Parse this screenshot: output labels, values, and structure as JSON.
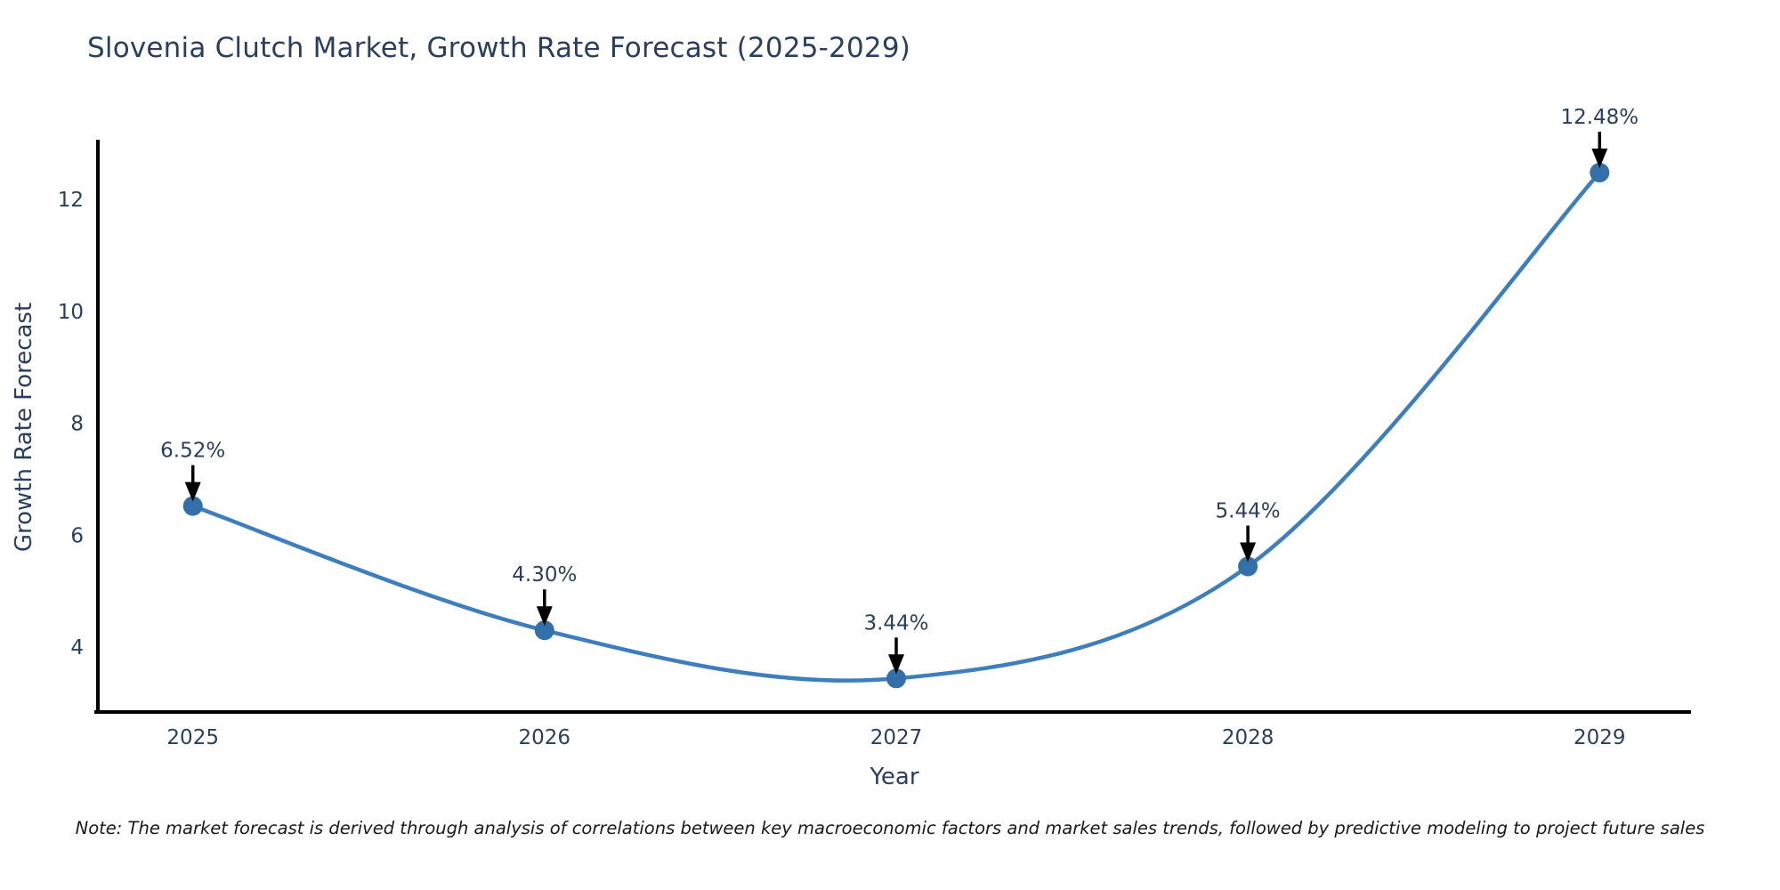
{
  "title": "Slovenia Clutch Market, Growth Rate Forecast (2025-2029)",
  "note": "Note: The market forecast is derived through analysis of correlations between key macroeconomic factors and market sales trends, followed by predictive modeling to project future sales",
  "chart_data": {
    "type": "line",
    "title": "Slovenia Clutch Market, Growth Rate Forecast (2025-2029)",
    "xlabel": "Year",
    "ylabel": "Growth Rate Forecast",
    "x": [
      2025,
      2026,
      2027,
      2028,
      2029
    ],
    "y": [
      6.52,
      4.3,
      3.44,
      5.44,
      12.48
    ],
    "point_labels": [
      "6.52%",
      "4.30%",
      "3.44%",
      "5.44%",
      "12.48%"
    ],
    "xticks": [
      2025,
      2026,
      2027,
      2028,
      2029
    ],
    "xtick_labels": [
      "2025",
      "2026",
      "2027",
      "2028",
      "2029"
    ],
    "yticks": [
      4,
      6,
      8,
      10,
      12
    ],
    "ytick_labels": [
      "4",
      "6",
      "8",
      "10",
      "12"
    ],
    "xlim": [
      2024.73,
      2029.26
    ],
    "ylim": [
      2.84,
      13.02
    ],
    "grid": false,
    "legend": "none",
    "line_shape": "spline",
    "colors": {
      "line": "#3d7ebf",
      "marker": "#336fa9",
      "text": "#2a3f5f",
      "axis": "#000000",
      "annotation": "#2a3f5f",
      "arrow": "#000000"
    }
  }
}
